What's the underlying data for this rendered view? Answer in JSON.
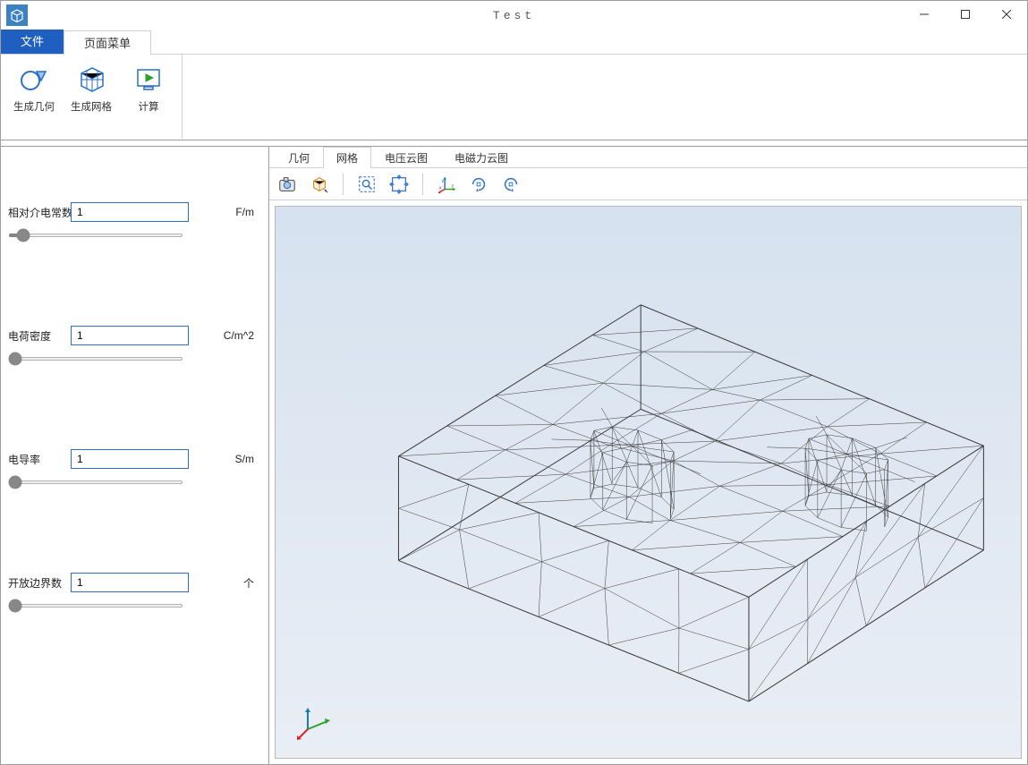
{
  "window": {
    "title": "Test",
    "app_icon_bg": "#3b82c4"
  },
  "maintabs": {
    "file": "文件",
    "page_menu": "页面菜单"
  },
  "ribbon": {
    "gen_geometry": "生成几何",
    "gen_mesh": "生成网格",
    "compute": "计算"
  },
  "params": {
    "permittivity": {
      "label": "相对介电常数",
      "value": "1",
      "unit": "F/m",
      "slider_min": 0,
      "slider_max": 100,
      "slider_val": 5
    },
    "charge_density": {
      "label": "电荷密度",
      "value": "1",
      "unit": "C/m^2",
      "slider_min": 0,
      "slider_max": 100,
      "slider_val": 0
    },
    "conductivity": {
      "label": "电导率",
      "value": "1",
      "unit": "S/m",
      "slider_min": 0,
      "slider_max": 100,
      "slider_val": 0
    },
    "open_boundary": {
      "label": "开放边界数",
      "value": "1",
      "unit": "个",
      "slider_min": 0,
      "slider_max": 100,
      "slider_val": 0
    }
  },
  "viewtabs": {
    "geometry": "几何",
    "mesh": "网格",
    "voltage": "电压云图",
    "force": "电磁力云图",
    "active": "mesh"
  },
  "viewport": {
    "bg_top": "#d6e2ef",
    "bg_bottom": "#e9eef5",
    "mesh_color": "#3a3a3a",
    "mesh_stroke": 0.6,
    "triad": {
      "x_color": "#d62728",
      "y_color": "#2ca02c",
      "z_color": "#1f77b4"
    },
    "bbox_vertices": {
      "comment": "isometric projection of a rectangular block, normalized coords 0..1 inside viewport svg",
      "V0": [
        0.165,
        0.65
      ],
      "V1": [
        0.635,
        0.92
      ],
      "V2": [
        0.95,
        0.63
      ],
      "V3": [
        0.49,
        0.36
      ],
      "V4": [
        0.165,
        0.45
      ],
      "V5": [
        0.635,
        0.72
      ],
      "V6": [
        0.95,
        0.43
      ],
      "V7": [
        0.49,
        0.16
      ]
    }
  }
}
